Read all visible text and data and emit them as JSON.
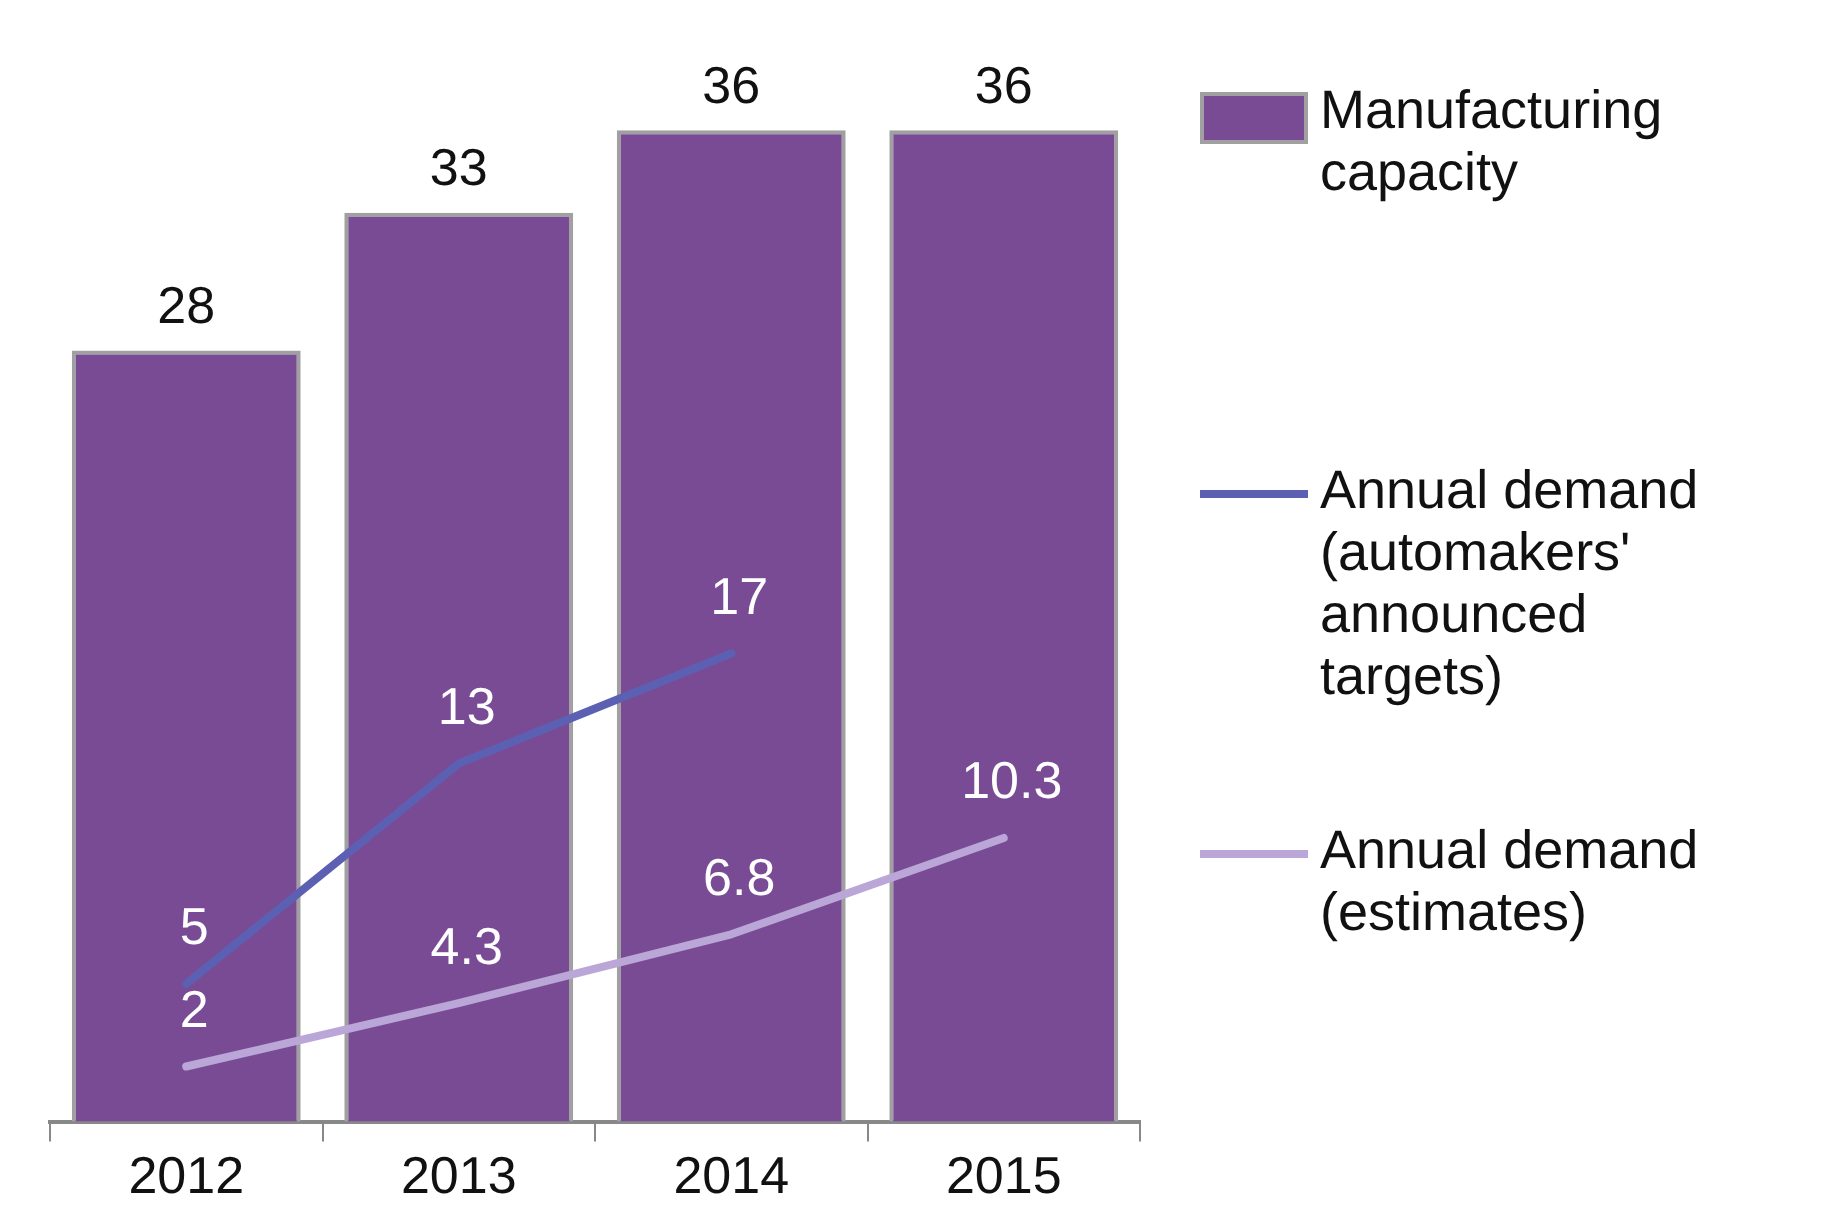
{
  "chart_data": {
    "type": "bar",
    "categories": [
      "2012",
      "2013",
      "2014",
      "2015"
    ],
    "series": [
      {
        "name": "Manufacturing capacity",
        "color": "#7a4b95",
        "values": [
          28,
          33,
          36,
          36
        ]
      },
      {
        "name": "Annual demand (automakers' announced targets)",
        "type": "line",
        "color": "#5c60b3",
        "values": [
          5,
          13,
          17,
          null
        ]
      },
      {
        "name": "Annual demand (estimates)",
        "type": "line",
        "color": "#bba6d8",
        "values": [
          2,
          4.3,
          6.8,
          10.3
        ]
      }
    ],
    "data_labels": true,
    "grid": false,
    "legend": "right",
    "marker": "none"
  }
}
